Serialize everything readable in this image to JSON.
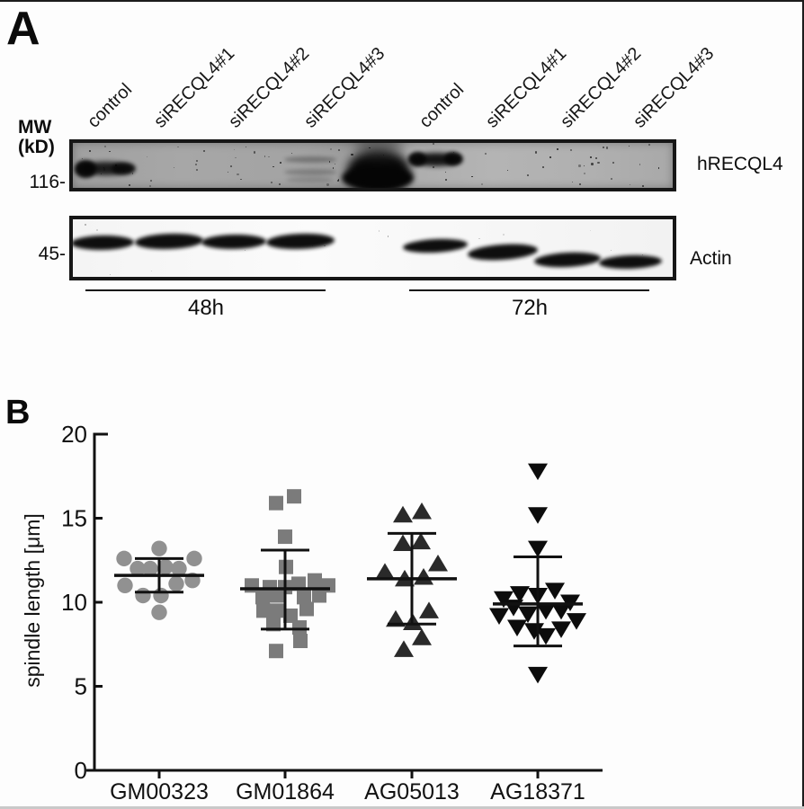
{
  "figure": {
    "panel_a": {
      "label": "A",
      "mw_label": "MW",
      "mw_units": "(kD)",
      "lane_labels": [
        "control",
        "siRECQL4#1",
        "siRECQL4#2",
        "siRECQL4#3",
        "control",
        "siRECQL4#1",
        "siRECQL4#2",
        "siRECQL4#3"
      ],
      "blots": [
        {
          "target": "hRECQL4",
          "mw_marker": "116-",
          "strong_band_lanes": [
            1,
            5
          ],
          "faint_band_lanes": [
            4
          ],
          "artifact": "dark smear between the 48h and 72h lane groups"
        },
        {
          "target": "Actin",
          "mw_marker": "45-",
          "strong_band_lanes": [
            1,
            2,
            3,
            4,
            5,
            6,
            7,
            8
          ]
        }
      ],
      "time_labels": [
        "48h",
        "72h"
      ]
    },
    "panel_b": {
      "label": "B"
    }
  },
  "chart_data": {
    "type": "scatter",
    "title": "",
    "xlabel": "",
    "ylabel": "spindle length [μm]",
    "ylim": [
      0,
      20
    ],
    "yticks": [
      0,
      5,
      10,
      15,
      20
    ],
    "grid": false,
    "legend": false,
    "categories": [
      "GM00323",
      "GM01864",
      "AG05013",
      "AG18371"
    ],
    "series": [
      {
        "name": "GM00323",
        "marker": "circle",
        "color": "#919191",
        "points": [
          [
            0,
            13.2
          ],
          [
            -39,
            12.6
          ],
          [
            39,
            12.6
          ],
          [
            -24,
            12.0
          ],
          [
            -10,
            12.0
          ],
          [
            7,
            12.1
          ],
          [
            22,
            12.0
          ],
          [
            37,
            11.3
          ],
          [
            -38,
            11.0
          ],
          [
            19,
            11.1
          ],
          [
            -18,
            10.4
          ],
          [
            2,
            10.4
          ],
          [
            0,
            9.4
          ]
        ],
        "stats": {
          "mean": 11.6,
          "err_low": 10.6,
          "err_high": 12.6
        }
      },
      {
        "name": "GM01864",
        "marker": "square",
        "color": "#7b7b7b",
        "points": [
          [
            10,
            16.3
          ],
          [
            -10,
            15.9
          ],
          [
            0,
            13.9
          ],
          [
            1,
            12.1
          ],
          [
            -37,
            11.0
          ],
          [
            -17,
            10.9
          ],
          [
            0,
            10.9
          ],
          [
            15,
            11.1
          ],
          [
            33,
            11.3
          ],
          [
            48,
            11.0
          ],
          [
            -25,
            10.3
          ],
          [
            -9,
            10.4
          ],
          [
            21,
            10.3
          ],
          [
            38,
            10.4
          ],
          [
            -24,
            9.5
          ],
          [
            -9,
            9.5
          ],
          [
            24,
            9.6
          ],
          [
            6,
            9.2
          ],
          [
            -13,
            8.7
          ],
          [
            16,
            8.5
          ],
          [
            17,
            7.7
          ],
          [
            -10,
            7.1
          ]
        ],
        "stats": {
          "mean": 10.8,
          "err_low": 8.4,
          "err_high": 13.1
        }
      },
      {
        "name": "AG05013",
        "marker": "triangle-up",
        "color": "#2a2a2a",
        "points": [
          [
            -10,
            15.2
          ],
          [
            11,
            15.4
          ],
          [
            -10,
            13.5
          ],
          [
            10,
            13.6
          ],
          [
            29,
            12.3
          ],
          [
            -30,
            11.8
          ],
          [
            -8,
            11.4
          ],
          [
            13,
            11.5
          ],
          [
            19,
            9.5
          ],
          [
            -18,
            9.0
          ],
          [
            1,
            8.8
          ],
          [
            11,
            7.9
          ],
          [
            -9,
            7.2
          ]
        ],
        "stats": {
          "mean": 11.4,
          "err_low": 8.7,
          "err_high": 14.1
        }
      },
      {
        "name": "AG18371",
        "marker": "triangle-down",
        "color": "#0c0c0c",
        "points": [
          [
            0,
            17.8
          ],
          [
            0,
            15.2
          ],
          [
            0,
            13.2
          ],
          [
            19,
            10.7
          ],
          [
            -20,
            10.5
          ],
          [
            0,
            10.4
          ],
          [
            -38,
            10.2
          ],
          [
            36,
            10.0
          ],
          [
            -27,
            9.7
          ],
          [
            9,
            9.5
          ],
          [
            26,
            9.5
          ],
          [
            -11,
            9.3
          ],
          [
            -43,
            9.2
          ],
          [
            43,
            8.9
          ],
          [
            -23,
            8.5
          ],
          [
            26,
            8.4
          ],
          [
            -4,
            8.3
          ],
          [
            9,
            8.0
          ],
          [
            0,
            5.7
          ]
        ],
        "stats": {
          "mean": 9.9,
          "err_low": 7.4,
          "err_high": 12.7
        }
      }
    ]
  }
}
